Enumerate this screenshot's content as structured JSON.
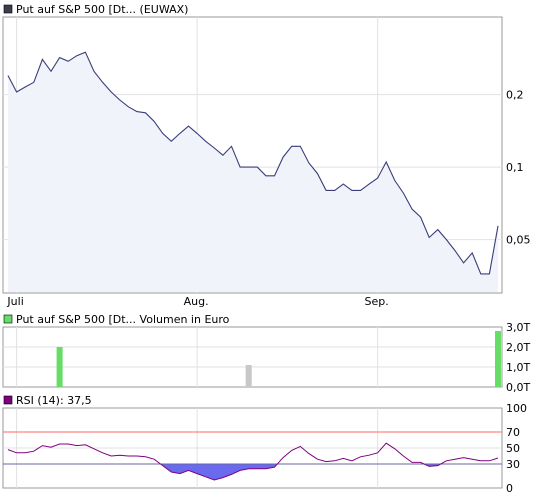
{
  "colors": {
    "price_line": "#3a3d7a",
    "price_fill": "#f1f3fa",
    "grid": "#e2e2e2",
    "frame": "#999999",
    "volume_up": "#66dd66",
    "volume_neutral": "#c8c8c8",
    "rsi_line": "#7f007f",
    "rsi_fill": "#6a6aee",
    "rsi_ref_70": "#ff6666",
    "rsi_ref_30": "#6666aa",
    "legend_price": "#3a3d4a",
    "legend_volume": "#66dd66",
    "legend_rsi": "#7f007f"
  },
  "chart_data": [
    {
      "id": "price",
      "type": "area",
      "legend": "Put auf S&P 500 [Dt... (EUWAX)",
      "x_ticks": [
        {
          "label": "Juli",
          "index": 1
        },
        {
          "label": "Aug.",
          "index": 22
        },
        {
          "label": "Sep.",
          "index": 43
        }
      ],
      "y_ticks": [
        {
          "label": "0,2",
          "value": 0.2
        },
        {
          "label": "0,1",
          "value": 0.1
        },
        {
          "label": "0,05",
          "value": 0.05
        }
      ],
      "y_scale": "log",
      "ylim": [
        0.03,
        0.42
      ],
      "grid": true,
      "values": [
        0.24,
        0.205,
        0.215,
        0.225,
        0.28,
        0.25,
        0.285,
        0.275,
        0.29,
        0.3,
        0.25,
        0.225,
        0.205,
        0.19,
        0.178,
        0.17,
        0.168,
        0.155,
        0.138,
        0.128,
        0.138,
        0.148,
        0.138,
        0.128,
        0.12,
        0.112,
        0.122,
        0.1,
        0.1,
        0.1,
        0.092,
        0.092,
        0.11,
        0.122,
        0.122,
        0.104,
        0.094,
        0.08,
        0.08,
        0.085,
        0.08,
        0.08,
        0.085,
        0.09,
        0.105,
        0.088,
        0.078,
        0.067,
        0.062,
        0.051,
        0.055,
        0.05,
        0.045,
        0.04,
        0.044,
        0.036,
        0.036,
        0.057
      ]
    },
    {
      "id": "volume",
      "type": "bar",
      "legend": "Put auf S&P 500 [Dt... Volumen in Euro",
      "y_ticks": [
        {
          "label": "3,0T",
          "value": 3.0
        },
        {
          "label": "2,0T",
          "value": 2.0
        },
        {
          "label": "1,0T",
          "value": 1.0
        },
        {
          "label": "0,0T",
          "value": 0.0
        }
      ],
      "ylim": [
        0,
        3.0
      ],
      "unit": "T Euro",
      "bars": [
        {
          "index": 6,
          "value": 2.0,
          "color": "up"
        },
        {
          "index": 28,
          "value": 1.1,
          "color": "neutral"
        },
        {
          "index": 57,
          "value": 2.8,
          "color": "up"
        }
      ]
    },
    {
      "id": "rsi",
      "type": "line",
      "legend": "RSI (14): 37,5",
      "y_ticks": [
        {
          "label": "100",
          "value": 100
        },
        {
          "label": "70",
          "value": 70,
          "color": "rsi_ref_70"
        },
        {
          "label": "50",
          "value": 50
        },
        {
          "label": "30",
          "value": 30,
          "color": "rsi_ref_30"
        },
        {
          "label": "0",
          "value": 0
        }
      ],
      "ylim": [
        0,
        100
      ],
      "reference_lines": [
        70,
        30
      ],
      "values": [
        48,
        44,
        44,
        46,
        53,
        51,
        55,
        55,
        53,
        54,
        49,
        44,
        40,
        41,
        40,
        40,
        39,
        36,
        28,
        20,
        18,
        22,
        18,
        14,
        10,
        13,
        17,
        22,
        24,
        24,
        24,
        26,
        38,
        47,
        52,
        43,
        36,
        33,
        34,
        37,
        34,
        39,
        41,
        44,
        56,
        49,
        40,
        32,
        32,
        27,
        28,
        34,
        36,
        38,
        36,
        34,
        34,
        37.5
      ]
    }
  ]
}
